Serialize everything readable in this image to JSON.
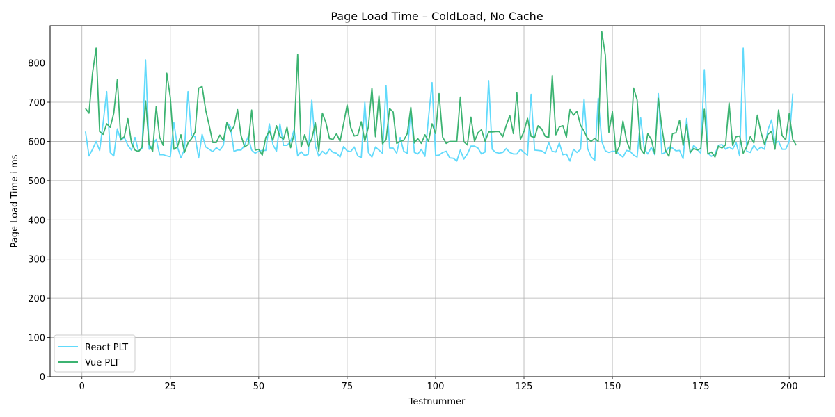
{
  "chart_data": {
    "type": "line",
    "title": "Page Load Time – ColdLoad, No Cache",
    "xlabel": "Testnummer",
    "ylabel": "Page Load Time i ms",
    "xlim": [
      -9,
      210
    ],
    "ylim": [
      0,
      895
    ],
    "xticks": [
      0,
      25,
      50,
      75,
      100,
      125,
      150,
      175,
      200
    ],
    "yticks": [
      0,
      100,
      200,
      300,
      400,
      500,
      600,
      700,
      800
    ],
    "grid": true,
    "legend_position": "lower-left",
    "colors": {
      "react": "#61dafb",
      "vue": "#3cb371"
    },
    "series": [
      {
        "name": "React PLT",
        "values": [
          625,
          563,
          580,
          600,
          577,
          647,
          727,
          572,
          563,
          632,
          603,
          610,
          590,
          578,
          610,
          575,
          582,
          808,
          580,
          590,
          605,
          566,
          566,
          563,
          561,
          648,
          586,
          558,
          580,
          727,
          615,
          612,
          558,
          618,
          586,
          580,
          574,
          584,
          578,
          590,
          648,
          638,
          575,
          578,
          578,
          590,
          612,
          578,
          570,
          575,
          577,
          577,
          645,
          592,
          575,
          645,
          590,
          590,
          600,
          630,
          563,
          574,
          564,
          567,
          705,
          588,
          562,
          575,
          567,
          581,
          572,
          570,
          560,
          587,
          576,
          574,
          586,
          563,
          559,
          700,
          572,
          560,
          586,
          578,
          570,
          742,
          583,
          583,
          570,
          610,
          575,
          570,
          682,
          572,
          568,
          580,
          562,
          660,
          750,
          564,
          565,
          572,
          575,
          558,
          557,
          550,
          578,
          555,
          568,
          588,
          588,
          583,
          568,
          573,
          755,
          580,
          572,
          570,
          572,
          582,
          572,
          568,
          568,
          580,
          572,
          565,
          720,
          578,
          577,
          576,
          570,
          597,
          575,
          573,
          596,
          566,
          568,
          550,
          580,
          572,
          580,
          708,
          582,
          560,
          552,
          710,
          600,
          576,
          572,
          575,
          575,
          567,
          560,
          577,
          575,
          565,
          560,
          660,
          582,
          568,
          585,
          566,
          722,
          568,
          572,
          586,
          583,
          576,
          577,
          556,
          658,
          570,
          590,
          580,
          570,
          783,
          570,
          562,
          568,
          590,
          592,
          580,
          586,
          580,
          597,
          563,
          838,
          575,
          572,
          590,
          578,
          586,
          580,
          630,
          655,
          595,
          600,
          580,
          580,
          600,
          722
        ]
      },
      {
        "name": "Vue PLT",
        "values": [
          684,
          672,
          775,
          838,
          625,
          618,
          645,
          636,
          672,
          758,
          605,
          612,
          658,
          596,
          578,
          574,
          586,
          703,
          593,
          575,
          689,
          610,
          590,
          774,
          712,
          580,
          586,
          617,
          572,
          596,
          607,
          624,
          736,
          740,
          680,
          640,
          597,
          597,
          616,
          602,
          648,
          625,
          638,
          681,
          615,
          586,
          592,
          680,
          578,
          580,
          565,
          610,
          627,
          603,
          640,
          612,
          606,
          636,
          584,
          618,
          822,
          586,
          617,
          587,
          607,
          647,
          575,
          672,
          648,
          607,
          605,
          620,
          600,
          645,
          693,
          636,
          614,
          616,
          650,
          600,
          637,
          736,
          612,
          716,
          594,
          604,
          684,
          675,
          595,
          600,
          603,
          620,
          687,
          596,
          607,
          595,
          617,
          600,
          645,
          620,
          722,
          611,
          595,
          600,
          600,
          600,
          713,
          599,
          591,
          662,
          600,
          622,
          630,
          600,
          624,
          624,
          625,
          625,
          612,
          641,
          666,
          620,
          724,
          605,
          625,
          659,
          613,
          610,
          640,
          632,
          613,
          610,
          768,
          617,
          637,
          640,
          611,
          681,
          667,
          677,
          641,
          626,
          607,
          600,
          608,
          600,
          880,
          820,
          623,
          676,
          569,
          588,
          652,
          602,
          578,
          736,
          706,
          581,
          568,
          620,
          605,
          568,
          710,
          635,
          577,
          562,
          620,
          622,
          654,
          590,
          642,
          572,
          582,
          578,
          582,
          682,
          568,
          573,
          560,
          588,
          583,
          591,
          698,
          590,
          612,
          614,
          570,
          587,
          612,
          596,
          667,
          624,
          593,
          618,
          626,
          580,
          680,
          615,
          604,
          671,
          605,
          590
        ]
      }
    ]
  }
}
